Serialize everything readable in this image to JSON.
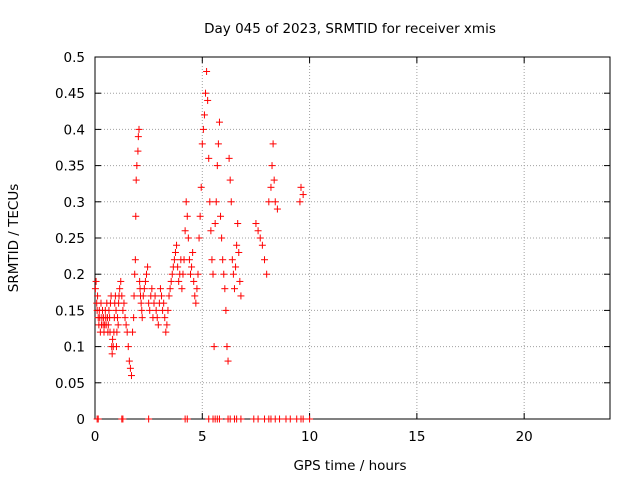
{
  "chart_data": {
    "type": "scatter",
    "title": "Day 045 of 2023, SRMTID for receiver xmis",
    "xlabel": "GPS time / hours",
    "ylabel": "SRMTID / TECUs",
    "xlim": [
      0,
      24
    ],
    "ylim": [
      0,
      0.5
    ],
    "xticks": [
      0,
      5,
      10,
      15,
      20
    ],
    "xtick_labels": [
      "0",
      "5",
      "10",
      "15",
      "20"
    ],
    "yticks": [
      0,
      0.05,
      0.1,
      0.15,
      0.2,
      0.25,
      0.3,
      0.35,
      0.4,
      0.45,
      0.5
    ],
    "ytick_labels": [
      "0",
      "0.05",
      "0.1",
      "0.15",
      "0.2",
      "0.25",
      "0.3",
      "0.35",
      "0.4",
      "0.45",
      "0.5"
    ],
    "grid": true,
    "marker": "+",
    "marker_color": "#ff0000",
    "series": [
      {
        "name": "SRMTID",
        "x": [
          0.02,
          0.05,
          0.08,
          0.1,
          0.12,
          0.15,
          0.18,
          0.2,
          0.22,
          0.25,
          0.28,
          0.3,
          0.32,
          0.35,
          0.38,
          0.4,
          0.42,
          0.45,
          0.48,
          0.5,
          0.52,
          0.55,
          0.58,
          0.6,
          0.62,
          0.65,
          0.68,
          0.7,
          0.72,
          0.75,
          0.78,
          0.8,
          0.82,
          0.85,
          0.88,
          0.9,
          0.92,
          0.95,
          0.98,
          1.0,
          1.02,
          1.05,
          1.08,
          1.1,
          1.12,
          1.15,
          1.2,
          1.25,
          1.3,
          1.35,
          1.4,
          1.45,
          1.5,
          1.55,
          1.6,
          1.65,
          1.7,
          1.75,
          1.8,
          1.82,
          1.85,
          1.88,
          1.9,
          1.92,
          1.95,
          2.0,
          2.02,
          2.05,
          2.08,
          2.1,
          2.12,
          2.15,
          2.18,
          2.2,
          2.25,
          2.3,
          2.35,
          2.4,
          2.45,
          2.5,
          2.55,
          2.6,
          2.65,
          2.7,
          2.75,
          2.8,
          2.85,
          2.9,
          2.95,
          3.0,
          3.05,
          3.1,
          3.15,
          3.2,
          3.25,
          3.3,
          3.35,
          3.4,
          3.45,
          3.5,
          3.55,
          3.6,
          3.65,
          3.7,
          3.75,
          3.8,
          3.85,
          3.9,
          3.95,
          4.0,
          4.05,
          4.1,
          4.15,
          4.2,
          4.25,
          4.3,
          4.35,
          4.4,
          4.45,
          4.5,
          4.55,
          4.6,
          4.65,
          4.7,
          4.75,
          4.8,
          4.85,
          4.9,
          4.95,
          5.0,
          5.05,
          5.1,
          5.15,
          5.2,
          5.25,
          5.3,
          5.35,
          5.4,
          5.45,
          5.5,
          5.55,
          5.6,
          5.65,
          5.7,
          5.75,
          5.8,
          5.85,
          5.9,
          5.95,
          6.0,
          6.05,
          6.1,
          6.15,
          6.2,
          6.25,
          6.3,
          6.35,
          6.4,
          6.45,
          6.5,
          6.55,
          6.6,
          6.65,
          6.7,
          6.75,
          6.8,
          7.5,
          7.6,
          7.7,
          7.8,
          7.9,
          8.0,
          8.1,
          8.2,
          8.25,
          8.3,
          8.35,
          8.4,
          8.5,
          9.55,
          9.6,
          9.7
        ],
        "y": [
          0.18,
          0.19,
          0.16,
          0.15,
          0.17,
          0.14,
          0.13,
          0.15,
          0.14,
          0.12,
          0.16,
          0.13,
          0.14,
          0.15,
          0.13,
          0.14,
          0.12,
          0.13,
          0.15,
          0.14,
          0.13,
          0.16,
          0.14,
          0.12,
          0.13,
          0.15,
          0.14,
          0.12,
          0.16,
          0.17,
          0.1,
          0.09,
          0.11,
          0.1,
          0.12,
          0.14,
          0.16,
          0.17,
          0.15,
          0.1,
          0.12,
          0.14,
          0.13,
          0.16,
          0.17,
          0.18,
          0.19,
          0.17,
          0.15,
          0.16,
          0.14,
          0.13,
          0.12,
          0.1,
          0.08,
          0.07,
          0.06,
          0.12,
          0.14,
          0.17,
          0.2,
          0.22,
          0.28,
          0.33,
          0.35,
          0.37,
          0.39,
          0.4,
          0.19,
          0.18,
          0.17,
          0.16,
          0.15,
          0.14,
          0.17,
          0.18,
          0.19,
          0.2,
          0.21,
          0.16,
          0.15,
          0.17,
          0.18,
          0.14,
          0.16,
          0.17,
          0.15,
          0.14,
          0.13,
          0.16,
          0.18,
          0.17,
          0.15,
          0.16,
          0.14,
          0.12,
          0.13,
          0.15,
          0.17,
          0.18,
          0.19,
          0.2,
          0.21,
          0.22,
          0.23,
          0.24,
          0.21,
          0.19,
          0.2,
          0.22,
          0.18,
          0.2,
          0.22,
          0.26,
          0.3,
          0.28,
          0.25,
          0.22,
          0.2,
          0.21,
          0.23,
          0.19,
          0.17,
          0.16,
          0.18,
          0.2,
          0.25,
          0.28,
          0.32,
          0.38,
          0.4,
          0.42,
          0.45,
          0.48,
          0.44,
          0.36,
          0.3,
          0.26,
          0.22,
          0.2,
          0.1,
          0.27,
          0.3,
          0.35,
          0.38,
          0.41,
          0.28,
          0.25,
          0.22,
          0.2,
          0.18,
          0.15,
          0.1,
          0.08,
          0.36,
          0.33,
          0.3,
          0.22,
          0.2,
          0.18,
          0.21,
          0.24,
          0.27,
          0.23,
          0.19,
          0.17,
          0.27,
          0.26,
          0.25,
          0.24,
          0.22,
          0.2,
          0.3,
          0.32,
          0.35,
          0.38,
          0.33,
          0.3,
          0.29,
          0.3,
          0.32,
          0.31
        ]
      },
      {
        "name": "zero",
        "x": [
          0.1,
          0.15,
          1.25,
          1.3,
          2.5,
          4.2,
          4.3,
          5.3,
          5.5,
          5.6,
          5.7,
          5.8,
          6.2,
          6.3,
          6.5,
          6.6,
          6.8,
          7.4,
          7.6,
          7.9,
          8.1,
          8.2,
          8.4,
          8.6,
          8.9,
          9.1,
          9.4,
          9.6,
          9.7,
          10.0
        ],
        "y": [
          0,
          0,
          0,
          0,
          0,
          0,
          0,
          0,
          0,
          0,
          0,
          0,
          0,
          0,
          0,
          0,
          0,
          0,
          0,
          0,
          0,
          0,
          0,
          0,
          0,
          0,
          0,
          0,
          0,
          0
        ]
      }
    ]
  }
}
